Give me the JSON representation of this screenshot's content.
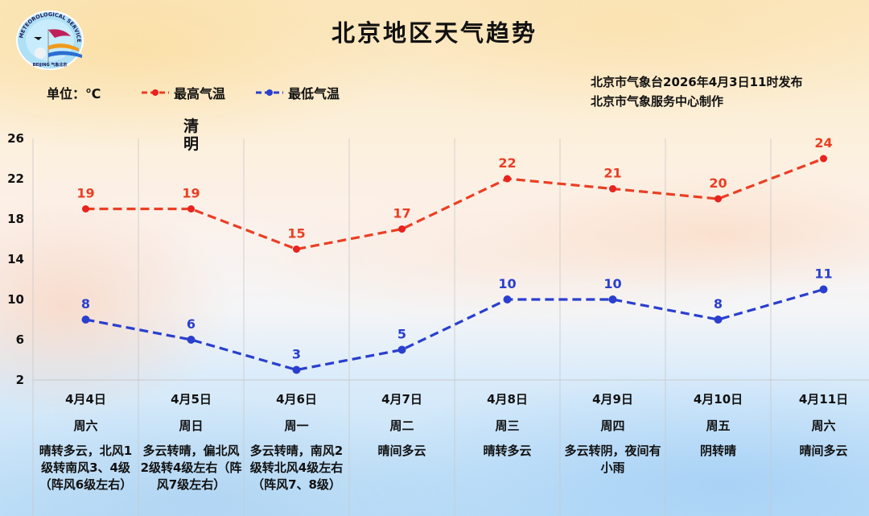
{
  "header": {
    "title": "北京地区天气趋势",
    "unit_label": "单位：℃",
    "issuer_line1": "北京市气象台2026年4月3日11时发布",
    "issuer_line2": "北京市气象服务中心制作",
    "logo": {
      "top_text": "METEOROLOGICAL SERVICE",
      "bottom_text": "BEIJING 气象北京"
    }
  },
  "legend": {
    "high_label": "最高气温",
    "low_label": "最低气温"
  },
  "annotation": {
    "solar_term": "清明",
    "solar_term_day_index": 1
  },
  "colors": {
    "high": "#ea3f24",
    "high_marker": "#e8221e",
    "low": "#2a3fce",
    "grid": "#c9c9c9"
  },
  "chart_data": {
    "type": "line",
    "title": "北京地区天气趋势",
    "xlabel": "",
    "ylabel": "℃",
    "categories": [
      "4月4日",
      "4月5日",
      "4月6日",
      "4月7日",
      "4月8日",
      "4月9日",
      "4月10日",
      "4月11日"
    ],
    "series": [
      {
        "name": "最高气温",
        "values": [
          19,
          19,
          15,
          17,
          22,
          21,
          20,
          24
        ],
        "color": "#ea3f24",
        "style": "dashed"
      },
      {
        "name": "最低气温",
        "values": [
          8,
          6,
          3,
          5,
          10,
          10,
          8,
          11
        ],
        "color": "#2a3fce",
        "style": "dashed"
      }
    ],
    "yticks": [
      2,
      6,
      10,
      14,
      18,
      22,
      26
    ],
    "ylim": [
      2,
      26
    ],
    "grid": "vertical",
    "legend_position": "top-left",
    "data_labels": true
  },
  "days": [
    {
      "date": "4月4日",
      "weekday": "周六",
      "desc": "晴转多云，北风1级转南风3、4级（阵风6级左右）"
    },
    {
      "date": "4月5日",
      "weekday": "周日",
      "desc": "多云转晴，偏北风2级转4级左右（阵风7级左右）"
    },
    {
      "date": "4月6日",
      "weekday": "周一",
      "desc": "多云转晴，南风2级转北风4级左右（阵风7、8级）"
    },
    {
      "date": "4月7日",
      "weekday": "周二",
      "desc": "晴间多云"
    },
    {
      "date": "4月8日",
      "weekday": "周三",
      "desc": "晴转多云"
    },
    {
      "date": "4月9日",
      "weekday": "周四",
      "desc": "多云转阴，夜间有小雨"
    },
    {
      "date": "4月10日",
      "weekday": "周五",
      "desc": "阴转晴"
    },
    {
      "date": "4月11日",
      "weekday": "周六",
      "desc": "晴间多云"
    }
  ]
}
